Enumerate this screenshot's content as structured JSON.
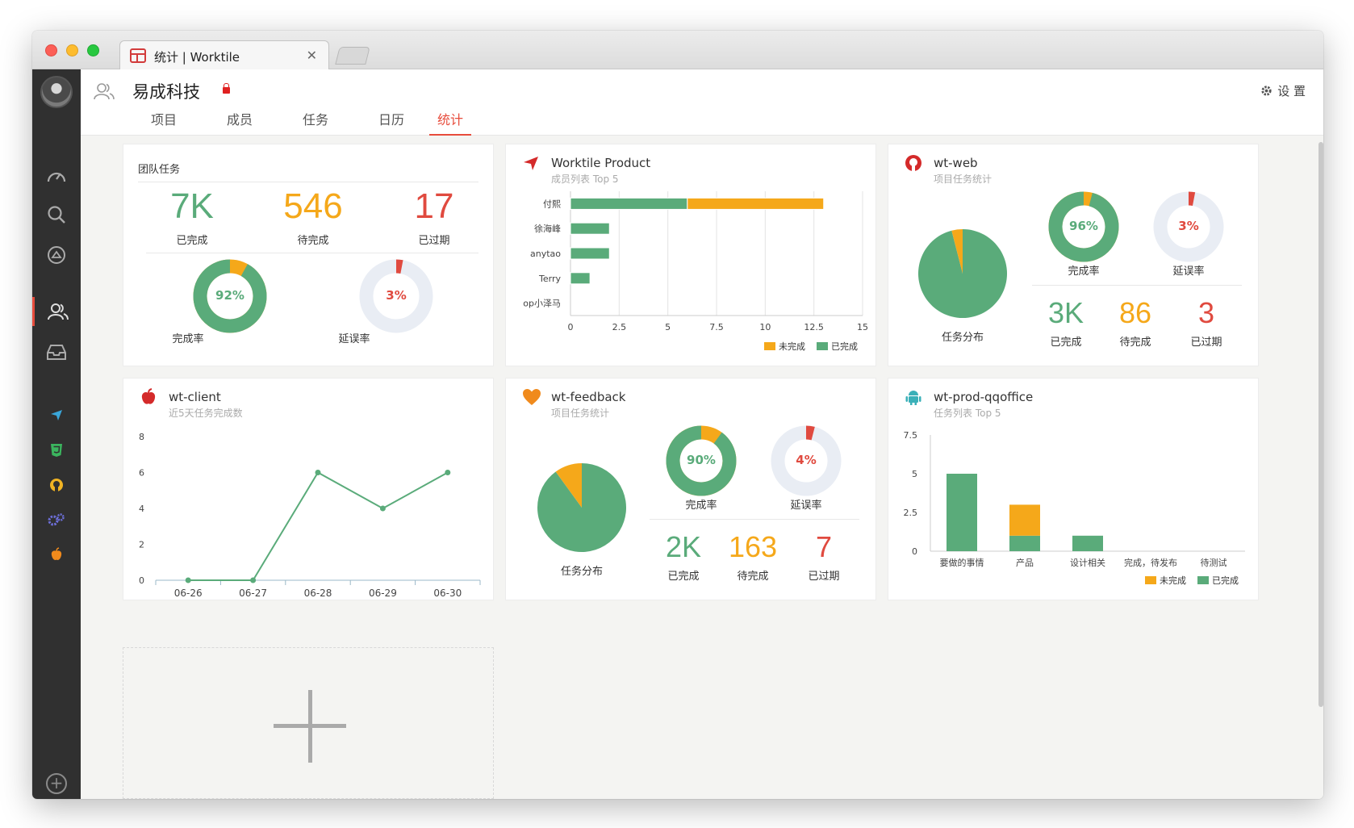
{
  "window": {
    "tab_title": "统计 | Worktile"
  },
  "header": {
    "team_name": "易成科技",
    "settings_label": "设 置",
    "tabs": [
      "项目",
      "成员",
      "任务",
      "日历",
      "统计"
    ]
  },
  "cards": {
    "team": {
      "title": "团队任务",
      "completed": "7K",
      "completed_label": "已完成",
      "pending": "546",
      "pending_label": "待完成",
      "overdue": "17",
      "overdue_label": "已过期",
      "completion_rate": "92%",
      "completion_rate_value": 92,
      "completion_label": "完成率",
      "delay_rate": "3%",
      "delay_rate_value": 3,
      "delay_label": "延误率"
    },
    "product": {
      "title": "Worktile Product",
      "subtitle": "成员列表 Top 5",
      "legend_incomplete": "未完成",
      "legend_complete": "已完成"
    },
    "web": {
      "title": "wt-web",
      "subtitle": "项目任务统计",
      "pie_label": "任务分布",
      "pie_completed_fraction": 0.96,
      "completion_rate": "96%",
      "completion_rate_value": 96,
      "completion_label": "完成率",
      "delay_rate": "3%",
      "delay_rate_value": 3,
      "delay_label": "延误率",
      "completed": "3K",
      "completed_label": "已完成",
      "pending": "86",
      "pending_label": "待完成",
      "overdue": "3",
      "overdue_label": "已过期"
    },
    "client": {
      "title": "wt-client",
      "subtitle": "近5天任务完成数"
    },
    "feedback": {
      "title": "wt-feedback",
      "subtitle": "项目任务统计",
      "pie_label": "任务分布",
      "pie_completed_fraction": 0.9,
      "completion_rate": "90%",
      "completion_rate_value": 90,
      "completion_label": "完成率",
      "delay_rate": "4%",
      "delay_rate_value": 4,
      "delay_label": "延误率",
      "completed": "2K",
      "completed_label": "已完成",
      "pending": "163",
      "pending_label": "待完成",
      "overdue": "7",
      "overdue_label": "已过期"
    },
    "qqoffice": {
      "title": "wt-prod-qqoffice",
      "subtitle": "任务列表 Top 5",
      "legend_incomplete": "未完成",
      "legend_complete": "已完成"
    }
  },
  "colors": {
    "green": "#5aab7a",
    "orange": "#f5a81a",
    "red": "#e04a3f",
    "ring_bg": "#e9edf4"
  },
  "chart_data": [
    {
      "type": "bar",
      "orientation": "horizontal",
      "stacked": true,
      "categories": [
        "付熙",
        "徐海峰",
        "anytao",
        "Terry",
        "op小泽马"
      ],
      "series": [
        {
          "name": "已完成",
          "values": [
            6,
            2,
            2,
            1,
            0
          ]
        },
        {
          "name": "未完成",
          "values": [
            7,
            0,
            0,
            0,
            0
          ]
        }
      ],
      "xticks": [
        "0",
        "2.5",
        "5",
        "7.5",
        "10",
        "12.5",
        "15"
      ],
      "xlim": [
        0,
        15
      ],
      "grid": true,
      "legend": "bottom-right"
    },
    {
      "type": "line",
      "categories": [
        "06-26",
        "06-27",
        "06-28",
        "06-29",
        "06-30"
      ],
      "values": [
        0,
        0,
        6,
        4,
        6
      ],
      "yticks": [
        "0",
        "2",
        "4",
        "6",
        "8"
      ],
      "ylim": [
        0,
        8
      ]
    },
    {
      "type": "bar",
      "stacked": true,
      "categories": [
        "要做的事情",
        "产品",
        "设计相关",
        "完成，待发布",
        "待测试"
      ],
      "series": [
        {
          "name": "已完成",
          "values": [
            5,
            1,
            1,
            0,
            0
          ]
        },
        {
          "name": "未完成",
          "values": [
            0,
            2,
            0,
            0,
            0
          ]
        }
      ],
      "yticks": [
        "0",
        "2.5",
        "5",
        "7.5"
      ],
      "ylim": [
        0,
        7.5
      ],
      "legend": "bottom-right"
    }
  ]
}
